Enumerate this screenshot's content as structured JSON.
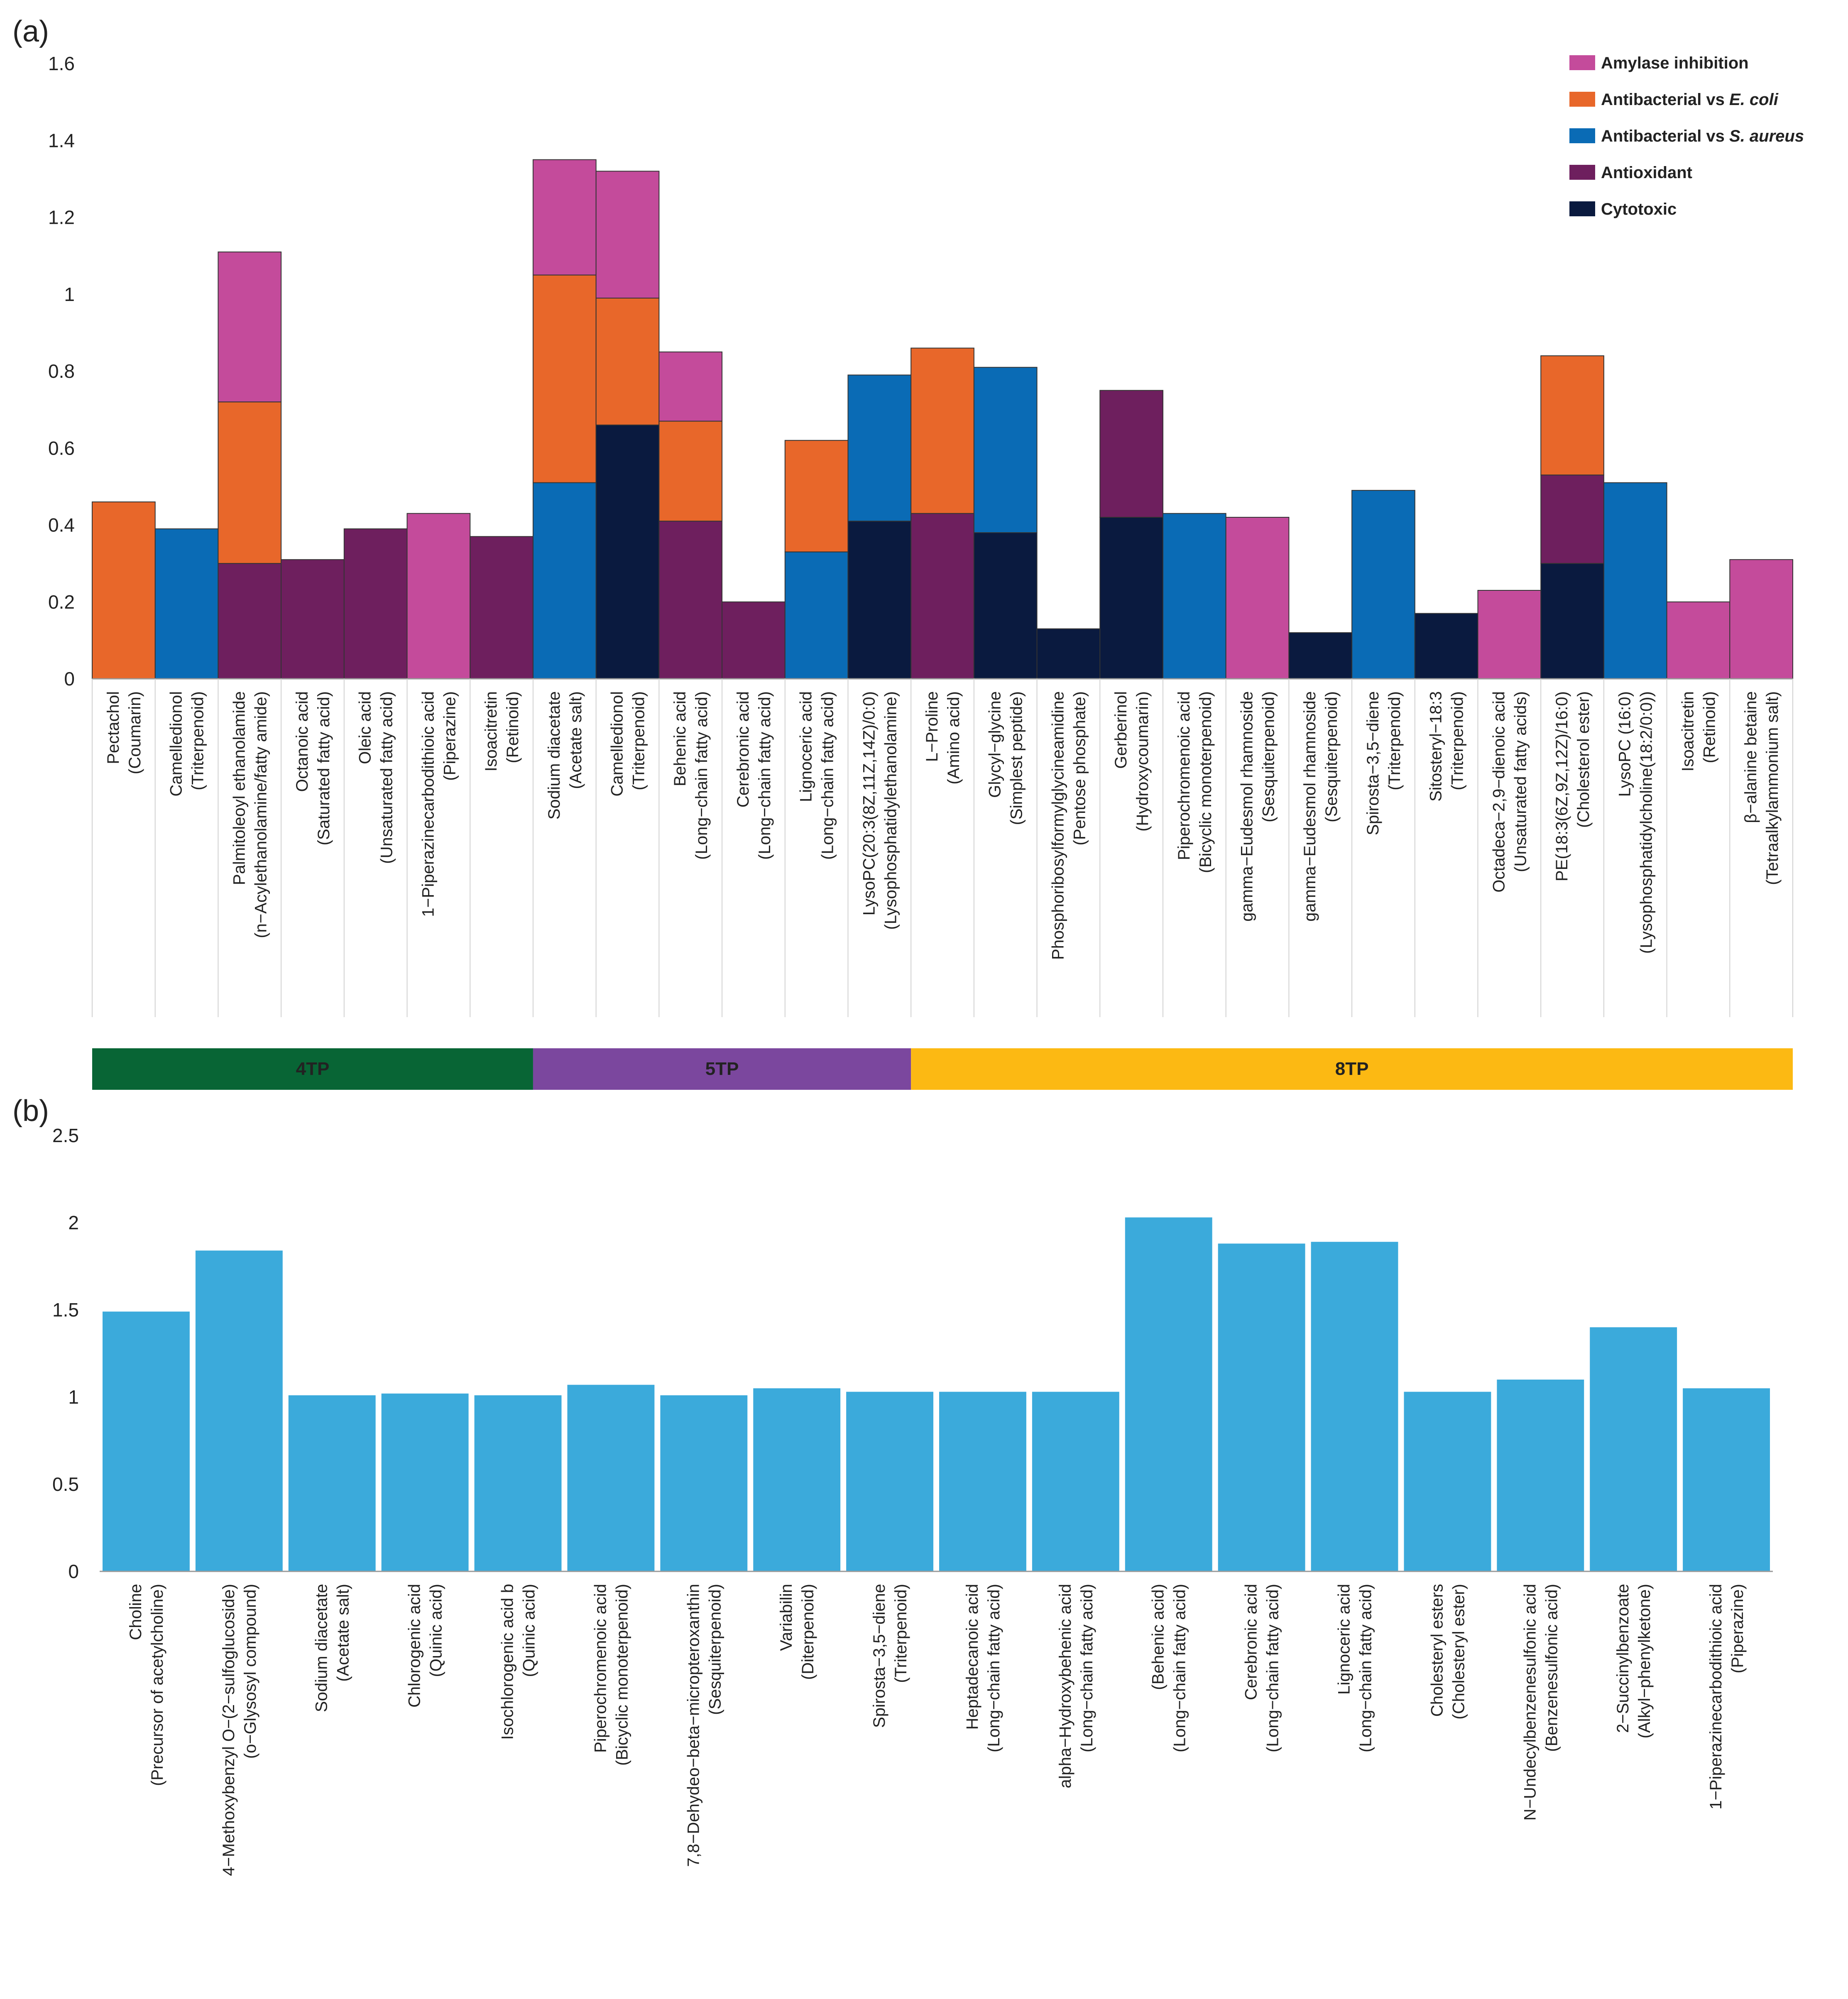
{
  "chart_data": [
    {
      "panel_label": "(a)",
      "type": "bar",
      "stacked": true,
      "ylim": [
        0,
        1.6
      ],
      "yticks": [
        "0",
        "0.2",
        "0.4",
        "0.6",
        "0.8",
        "1",
        "1.2",
        "1.4",
        "1.6"
      ],
      "grid": false,
      "legend_position": "top-right",
      "legend": [
        {
          "key": "amylase",
          "name": "Amylase inhibition",
          "color": "#C44B9B"
        },
        {
          "key": "ecoli",
          "name_prefix": "Antibacterial vs ",
          "name_italic": "E. coli",
          "color": "#E8672A"
        },
        {
          "key": "saureus",
          "name_prefix": "Antibacterial vs ",
          "name_italic": "S. aureus",
          "color": "#0A6BB5"
        },
        {
          "key": "antioxidant",
          "name": "Antioxidant",
          "color": "#6E1F5E"
        },
        {
          "key": "cytotoxic",
          "name": "Cytotoxic",
          "color": "#0A1A3F"
        }
      ],
      "groups": [
        {
          "label": "4TP",
          "start": 0,
          "end": 7,
          "color": "#086535"
        },
        {
          "label": "5TP",
          "start": 7,
          "end": 13,
          "color": "#7B479E"
        },
        {
          "label": "8TP",
          "start": 13,
          "end": 27,
          "color": "#FCB913"
        }
      ],
      "bars": [
        {
          "name": "Pectachol",
          "class": "(Coumarin)",
          "segments": [
            {
              "key": "ecoli",
              "value": 0.46
            }
          ]
        },
        {
          "name": "Camelledionol",
          "class": "(Triterpenoid)",
          "segments": [
            {
              "key": "saureus",
              "value": 0.39
            }
          ]
        },
        {
          "name": "Palmitoleoyl ethanolamide",
          "class": "(n−Acylethanolamine/fatty amide)",
          "segments": [
            {
              "key": "antioxidant",
              "value": 0.3
            },
            {
              "key": "ecoli",
              "value": 0.42
            },
            {
              "key": "amylase",
              "value": 0.39
            }
          ]
        },
        {
          "name": "Octanoic acid",
          "class": "(Saturated fatty acid)",
          "segments": [
            {
              "key": "antioxidant",
              "value": 0.31
            }
          ]
        },
        {
          "name": "Oleic acid",
          "class": "(Unsaturated fatty acid)",
          "segments": [
            {
              "key": "antioxidant",
              "value": 0.39
            }
          ]
        },
        {
          "name": "1−Piperazinecarbodithioic acid",
          "class": "(Piperazine)",
          "segments": [
            {
              "key": "amylase",
              "value": 0.43
            }
          ]
        },
        {
          "name": "Isoacitretin",
          "class": "(Retinoid)",
          "segments": [
            {
              "key": "antioxidant",
              "value": 0.37
            }
          ]
        },
        {
          "name": "Sodium diacetate",
          "class": "(Acetate salt)",
          "segments": [
            {
              "key": "saureus",
              "value": 0.51
            },
            {
              "key": "ecoli",
              "value": 0.54
            },
            {
              "key": "amylase",
              "value": 0.3
            }
          ]
        },
        {
          "name": "Camelledionol",
          "class": "(Triterpenoid)",
          "segments": [
            {
              "key": "cytotoxic",
              "value": 0.66
            },
            {
              "key": "ecoli",
              "value": 0.33
            },
            {
              "key": "amylase",
              "value": 0.33
            }
          ]
        },
        {
          "name": "Behenic acid",
          "class": "(Long−chain fatty acid)",
          "segments": [
            {
              "key": "antioxidant",
              "value": 0.41
            },
            {
              "key": "ecoli",
              "value": 0.26
            },
            {
              "key": "amylase",
              "value": 0.18
            }
          ]
        },
        {
          "name": "Cerebronic acid",
          "class": "(Long−chain fatty acid)",
          "segments": [
            {
              "key": "antioxidant",
              "value": 0.2
            }
          ]
        },
        {
          "name": "Lignoceric acid",
          "class": "(Long−chain fatty acid)",
          "segments": [
            {
              "key": "saureus",
              "value": 0.33
            },
            {
              "key": "ecoli",
              "value": 0.29
            }
          ]
        },
        {
          "name": "LysoPC(20:3(8Z,11Z,14Z)/0:0)",
          "class": "(Lysophosphatidylethanolamine)",
          "segments": [
            {
              "key": "cytotoxic",
              "value": 0.41
            },
            {
              "key": "saureus",
              "value": 0.38
            }
          ]
        },
        {
          "name": "L−Proline",
          "class": "(Amino acid)",
          "segments": [
            {
              "key": "antioxidant",
              "value": 0.43
            },
            {
              "key": "ecoli",
              "value": 0.43
            }
          ]
        },
        {
          "name": "Glycyl−glycine",
          "class": "(Simplest peptide)",
          "segments": [
            {
              "key": "cytotoxic",
              "value": 0.38
            },
            {
              "key": "saureus",
              "value": 0.43
            }
          ]
        },
        {
          "name": "Phosphoribosylformylglycineamidine",
          "class": "(Pentose phosphate)",
          "segments": [
            {
              "key": "cytotoxic",
              "value": 0.13
            }
          ]
        },
        {
          "name": "Gerberinol",
          "class": "(Hydroxycoumarin)",
          "segments": [
            {
              "key": "cytotoxic",
              "value": 0.42
            },
            {
              "key": "antioxidant",
              "value": 0.33
            }
          ]
        },
        {
          "name": "Piperochromenoic acid",
          "class": "(Bicyclic monoterpenoid)",
          "segments": [
            {
              "key": "saureus",
              "value": 0.43
            }
          ]
        },
        {
          "name": "gamma−Eudesmol rhamnoside",
          "class": "(Sesquiterpenoid)",
          "segments": [
            {
              "key": "amylase",
              "value": 0.42
            }
          ]
        },
        {
          "name": "gamma−Eudesmol rhamnoside",
          "class": "(Sesquiterpenoid)",
          "segments": [
            {
              "key": "cytotoxic",
              "value": 0.12
            }
          ]
        },
        {
          "name": "Spirosta−3,5−diene",
          "class": "(Triterpenoid)",
          "segments": [
            {
              "key": "saureus",
              "value": 0.49
            }
          ]
        },
        {
          "name": "Sitosteryl−18:3",
          "class": "(Triterpenoid)",
          "segments": [
            {
              "key": "cytotoxic",
              "value": 0.17
            }
          ]
        },
        {
          "name": "Octadeca−2,9−dienoic acid",
          "class": "(Unsaturated fatty acids)",
          "segments": [
            {
              "key": "amylase",
              "value": 0.23
            }
          ]
        },
        {
          "name": "PE(18:3(6Z,9Z,12Z)/16:0)",
          "class": "(Cholesterol ester)",
          "segments": [
            {
              "key": "cytotoxic",
              "value": 0.3
            },
            {
              "key": "antioxidant",
              "value": 0.23
            },
            {
              "key": "ecoli",
              "value": 0.31
            }
          ]
        },
        {
          "name": "LysoPC (16:0)",
          "class": "(Lysophosphatidylcholine(18:2/0:0))",
          "segments": [
            {
              "key": "saureus",
              "value": 0.51
            }
          ]
        },
        {
          "name": "Isoacitretin",
          "class": "(Retinoid)",
          "segments": [
            {
              "key": "amylase",
              "value": 0.2
            }
          ]
        },
        {
          "name": "β−alanine betaine",
          "class": "(Tetraalkylammonium salt)",
          "segments": [
            {
              "key": "amylase",
              "value": 0.31
            }
          ]
        }
      ]
    },
    {
      "panel_label": "(b)",
      "type": "bar",
      "ylim": [
        0,
        2.5
      ],
      "yticks": [
        "0",
        "0.5",
        "1",
        "1.5",
        "2",
        "2.5"
      ],
      "grid": false,
      "color": "#3BAADB",
      "bars": [
        {
          "name": "Choline",
          "class": "(Precursor of acetylcholine)",
          "value": 1.49
        },
        {
          "name": "4−Methoxybenzyl O−(2−sulfoglucoside)",
          "class": "(o−Glysosyl compound)",
          "value": 1.84
        },
        {
          "name": "Sodium diacetate",
          "class": "(Acetate salt)",
          "value": 1.01
        },
        {
          "name": "Chlorogenic acid",
          "class": "(Quinic acid)",
          "value": 1.02
        },
        {
          "name": "Isochlorogenic acid b",
          "class": "(Quinic acid)",
          "value": 1.01
        },
        {
          "name": "Piperochromenoic acid",
          "class": "(Bicyclic monoterpenoid)",
          "value": 1.07
        },
        {
          "name": "7,8−Dehydeo−beta−micropteroxanthin",
          "class": "(Sesquiterpenoid)",
          "value": 1.01
        },
        {
          "name": "Variabilin",
          "class": "(Diterpenoid)",
          "value": 1.05
        },
        {
          "name": "Spirosta−3,5−diene",
          "class": "(Triterpenoid)",
          "value": 1.03
        },
        {
          "name": "Heptadecanoic acid",
          "class": "(Long−chain fatty acid)",
          "value": 1.03
        },
        {
          "name": "alpha−Hydroxybehenic acid",
          "class": "(Long−chain fatty acid)",
          "value": 1.03
        },
        {
          "name": "(Behenic acid)",
          "class": "(Long−chain fatty acid)",
          "value": 2.03
        },
        {
          "name": "Cerebronic acid",
          "class": "(Long−chain fatty acid)",
          "value": 1.88
        },
        {
          "name": "Lignoceric acid",
          "class": "(Long−chain fatty acid)",
          "value": 1.89
        },
        {
          "name": "Cholesteryl esters",
          "class": "(Cholesteryl ester)",
          "value": 1.03
        },
        {
          "name": "N−Undecylbenzenesulfonic acid",
          "class": "(Benzenesulfonic acid)",
          "value": 1.1
        },
        {
          "name": "2−Succinylbenzoate",
          "class": "(Alkyl−phenylketone)",
          "value": 1.4
        },
        {
          "name": "1−Piperazinecarbodithioic acid",
          "class": "(Piperazine)",
          "value": 1.05
        }
      ]
    }
  ]
}
